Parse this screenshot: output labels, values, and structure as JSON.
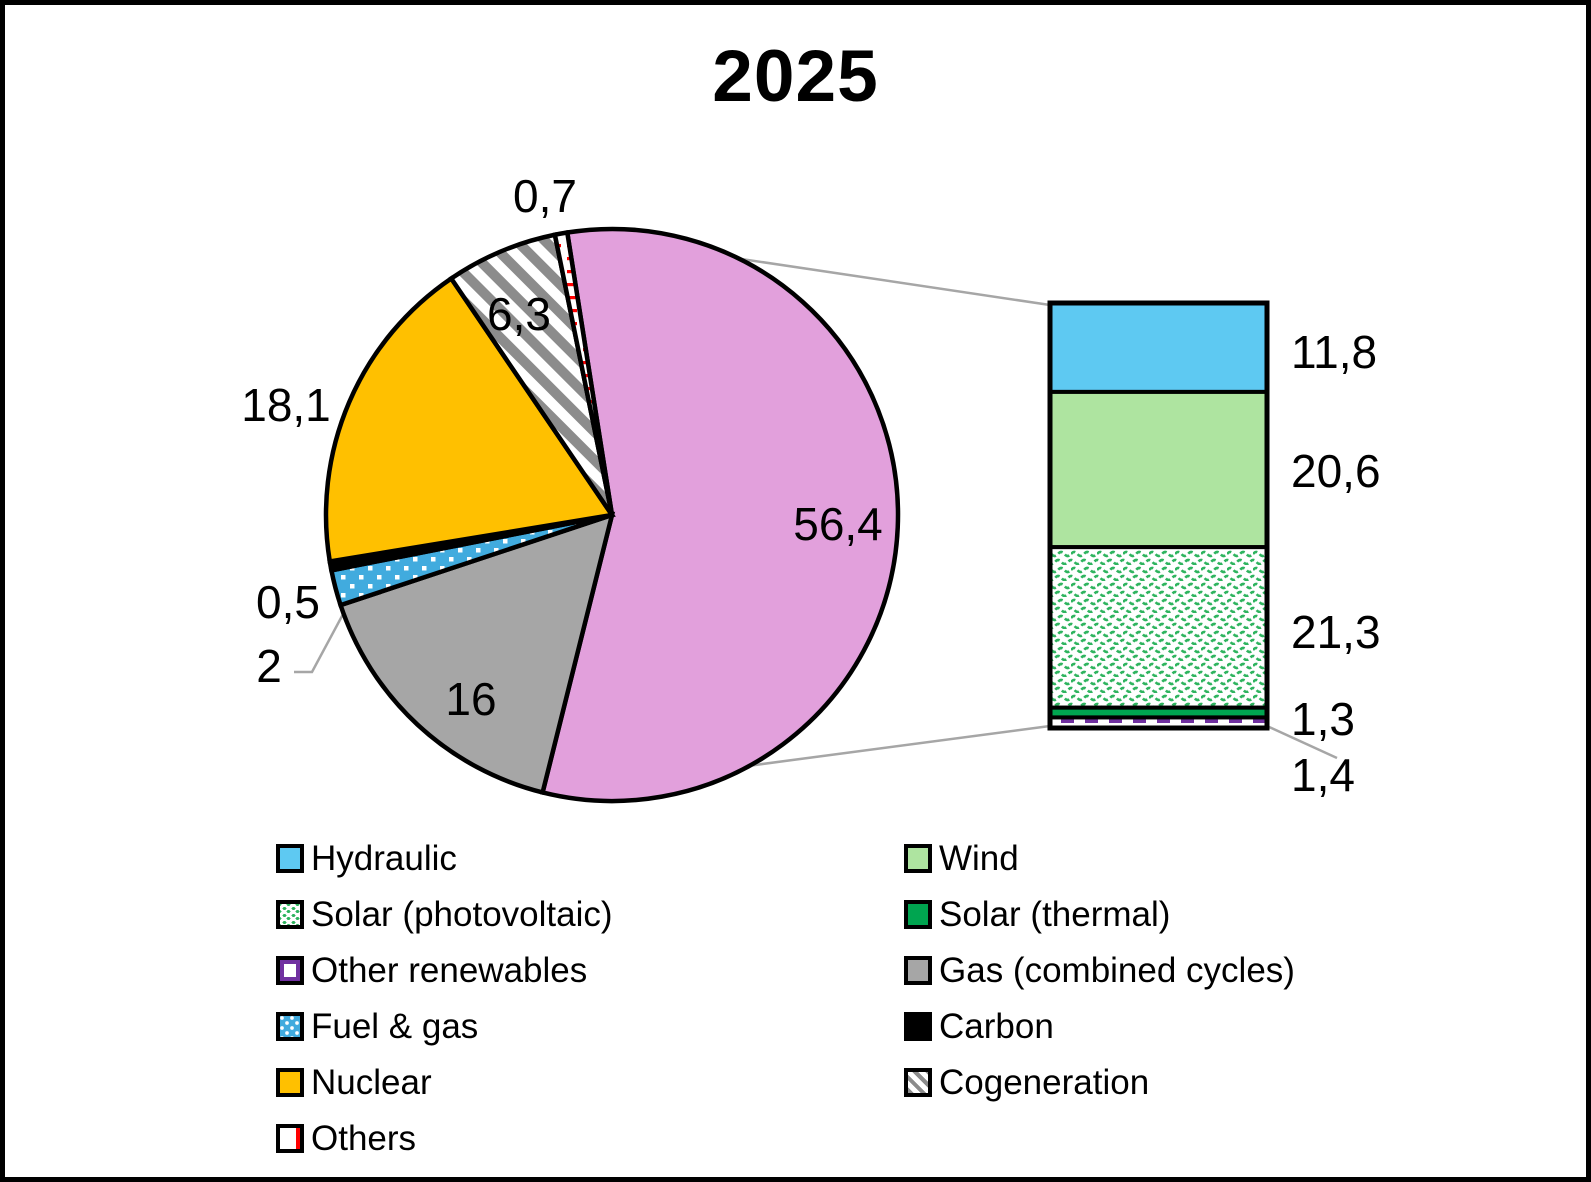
{
  "title": "2025",
  "chart_data": {
    "type": "pie-of-pie",
    "title": "2025",
    "values_unit": "%",
    "decimal_separator": ",",
    "legend_position": "bottom",
    "pie_total": 100,
    "pie_series": [
      {
        "label": "56,4",
        "value": 56.4,
        "swatch": "renewables",
        "color": "#E2A0DC",
        "linked_to_bar": true
      },
      {
        "name": "Gas (combined cycles)",
        "label": "16",
        "value": 16,
        "swatch": "gas_cc",
        "color": "#A6A6A6"
      },
      {
        "name": "Fuel & gas",
        "label": "2",
        "value": 2,
        "swatch": "fuel_gas",
        "color": "#41ABDE",
        "pattern": "white-dots"
      },
      {
        "name": "Carbon",
        "label": "0,5",
        "value": 0.5,
        "swatch": "carbon",
        "color": "#000000"
      },
      {
        "name": "Nuclear",
        "label": "18,1",
        "value": 18.1,
        "swatch": "nuclear",
        "color": "#FFC000"
      },
      {
        "name": "Cogeneration",
        "label": "6,3",
        "value": 6.3,
        "swatch": "cogeneration",
        "color": "#8C8C8C",
        "pattern": "gray-diagonal-stripes-on-white"
      },
      {
        "name": "Others",
        "label": "0,7",
        "value": 0.7,
        "swatch": "others",
        "color": "#FF0000",
        "pattern": "red-dashes-on-white"
      }
    ],
    "bar_total": 56.4,
    "bar_series": [
      {
        "name": "Hydraulic",
        "label": "11,8",
        "value": 11.8,
        "swatch": "hydraulic",
        "color": "#5EC9F2"
      },
      {
        "name": "Wind",
        "label": "20,6",
        "value": 20.6,
        "swatch": "wind",
        "color": "#AEE4A0"
      },
      {
        "name": "Solar (photovoltaic)",
        "label": "21,3",
        "value": 21.3,
        "swatch": "solar_pv",
        "color": "#2FB45F",
        "pattern": "green-waves-on-white"
      },
      {
        "name": "Solar (thermal)",
        "label": "1,3",
        "value": 1.3,
        "swatch": "solar_thermal",
        "color": "#00A550"
      },
      {
        "name": "Other renewables",
        "label": "1,4",
        "value": 1.4,
        "swatch": "other_renewables",
        "color": "#7030A0",
        "pattern": "purple-dashes-on-white"
      }
    ]
  },
  "legend": {
    "columns": [
      [
        {
          "label": "Hydraulic",
          "swatch": "hydraulic"
        },
        {
          "label": "Solar (photovoltaic)",
          "swatch": "solar_pv"
        },
        {
          "label": "Other renewables",
          "swatch": "other_renewables"
        },
        {
          "label": "Fuel & gas",
          "swatch": "fuel_gas"
        },
        {
          "label": "Nuclear",
          "swatch": "nuclear"
        },
        {
          "label": "Others",
          "swatch": "others"
        }
      ],
      [
        {
          "label": "Wind",
          "swatch": "wind"
        },
        {
          "label": "Solar (thermal)",
          "swatch": "solar_thermal"
        },
        {
          "label": "Gas (combined cycles)",
          "swatch": "gas_cc"
        },
        {
          "label": "Carbon",
          "swatch": "carbon"
        },
        {
          "label": "Cogeneration",
          "swatch": "cogeneration"
        }
      ]
    ]
  },
  "connector_color": "#A6A6A6"
}
